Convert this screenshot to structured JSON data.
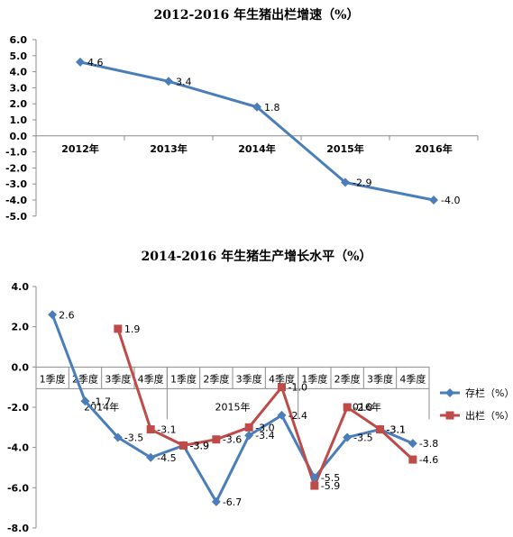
{
  "chart_data": [
    {
      "type": "line",
      "title": "2012-2016 年生猪出栏增速（%）",
      "categories": [
        "2012年",
        "2013年",
        "2014年",
        "2015年",
        "2016年"
      ],
      "series": [
        {
          "values": [
            4.6,
            3.4,
            1.8,
            -2.9,
            -4.0
          ],
          "labels": [
            "4.6",
            "3.4",
            "1.8",
            "-2.9",
            "-4.0"
          ],
          "color": "#4a7ebb"
        }
      ],
      "y_ticks": [
        "6.0",
        "5.0",
        "4.0",
        "3.0",
        "2.0",
        "1.0",
        "0.0",
        "-1.0",
        "-2.0",
        "-3.0",
        "-4.0",
        "-5.0"
      ],
      "ylim": [
        -5,
        6
      ],
      "grid": false
    },
    {
      "type": "line",
      "title": "2014-2016 年生猪生产增长水平（%）",
      "categories": [
        "1季度",
        "2季度",
        "3季度",
        "4季度",
        "1季度",
        "2季度",
        "3季度",
        "4季度",
        "1季度",
        "2季度",
        "3季度",
        "4季度"
      ],
      "year_labels": [
        "2014年",
        "2015年",
        "2016年"
      ],
      "series": [
        {
          "name": "存栏（%）",
          "marker": "diamond",
          "color": "#4a7ebb",
          "values": [
            2.6,
            -1.7,
            -3.5,
            -4.5,
            -3.9,
            -6.7,
            -3.4,
            -2.4,
            -5.5,
            -3.5,
            -3.1,
            -3.8
          ],
          "labels": [
            "2.6",
            "-1.7",
            "-3.5",
            "-4.5",
            "-3.9",
            "-6.7",
            "-3.4",
            "-2.4",
            "-5.5",
            "-3.5",
            "-3.1",
            "-3.8"
          ]
        },
        {
          "name": "出栏（%）",
          "marker": "square",
          "color": "#be4b48",
          "values": [
            null,
            null,
            1.9,
            -3.1,
            -3.9,
            -3.6,
            -3.0,
            -1.0,
            -5.9,
            -2.0,
            -3.1,
            -4.6
          ],
          "labels": [
            "",
            "",
            "1.9",
            "-3.1",
            "-3.9",
            "-3.6",
            "-3.0",
            "-1.0",
            "-5.9",
            "-2.0",
            "-3.1",
            "-4.6"
          ]
        }
      ],
      "y_ticks": [
        "4.0",
        "2.0",
        "0.0",
        "-2.0",
        "-4.0",
        "-6.0",
        "-8.0"
      ],
      "ylim": [
        -8,
        4
      ],
      "legend_position": "right",
      "grid": false
    }
  ]
}
